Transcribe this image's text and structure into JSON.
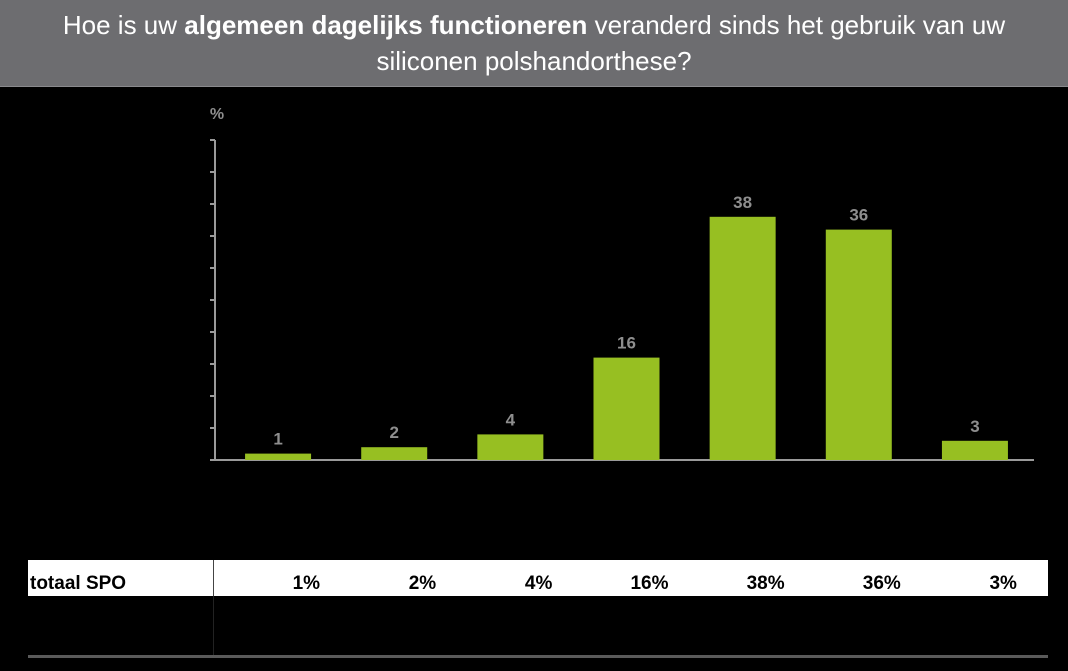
{
  "title": {
    "part1": "Hoe is uw ",
    "bold": "algemeen dagelijks functioneren",
    "part2": " veranderd sinds het gebruik van uw siliconen polshandorthese?"
  },
  "colors": {
    "bar": "#97bf22",
    "header_bg": "#6d6d70",
    "label": "#8e8e8e"
  },
  "chart_data": {
    "type": "bar",
    "categories": [
      "",
      "",
      "",
      "",
      "",
      "",
      ""
    ],
    "values": [
      1,
      2,
      4,
      16,
      38,
      36,
      3
    ],
    "data_labels": [
      "1",
      "2",
      "4",
      "16",
      "38",
      "36",
      "3"
    ],
    "ylabel": "%",
    "ylim": [
      0,
      50
    ],
    "ytick_count": 10,
    "legend": "none",
    "grid": false
  },
  "table": {
    "row_label": "totaal SPO",
    "cells": [
      "1%",
      "2%",
      "4%",
      "16%",
      "38%",
      "36%",
      "3%"
    ]
  }
}
